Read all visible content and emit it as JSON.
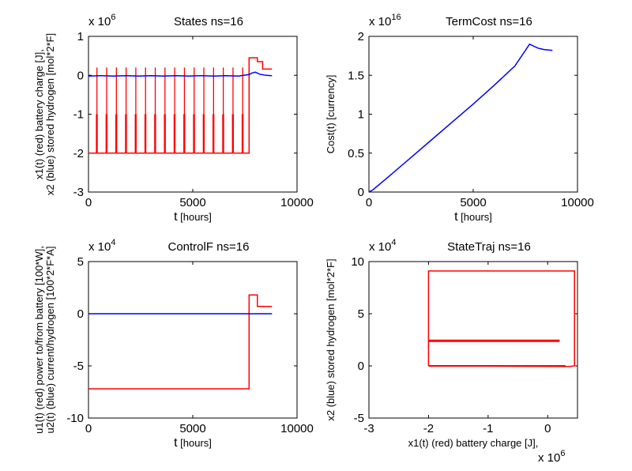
{
  "chart_data": [
    {
      "type": "line",
      "title": "States ns=16",
      "exponent": {
        "base": "x 10",
        "power": "6"
      },
      "xlabel": {
        "main": "t",
        "unit": "[hours]"
      },
      "ylabel": [
        "x1(t) (red) battery charge [J],",
        "x2 (blue) stored hydrogen [mol*2*F]"
      ],
      "xlim": [
        0,
        10000
      ],
      "ylim": [
        -3,
        1
      ],
      "xticks": [
        0,
        5000,
        10000
      ],
      "yticks": [
        -3,
        -2,
        -1,
        0,
        1
      ],
      "ytick_labels": [
        "-3",
        "-2",
        "-1",
        "0",
        "1"
      ],
      "series": [
        {
          "color": "#ff0000",
          "pulses": {
            "count": 16,
            "first": 400,
            "spacing": 466,
            "top": 0.2,
            "mid": -1.0,
            "base": -2.0
          },
          "x": [
            0,
            7700,
            7700,
            7700,
            8100,
            8100,
            8350,
            8350,
            8800
          ],
          "y": [
            -2.0,
            -2.0,
            0.0,
            0.45,
            0.45,
            0.35,
            0.35,
            0.16,
            0.16
          ]
        },
        {
          "color": "#0000ff",
          "x": [
            0,
            600,
            1200,
            1800,
            2400,
            3000,
            3600,
            4200,
            4800,
            5400,
            6000,
            6600,
            7200,
            7700,
            7850,
            8000,
            8200,
            8500,
            8800
          ],
          "y": [
            -0.02,
            -0.01,
            -0.02,
            -0.01,
            -0.02,
            -0.01,
            -0.02,
            -0.01,
            -0.02,
            -0.01,
            -0.02,
            -0.01,
            -0.02,
            0.02,
            0.06,
            0.08,
            0.03,
            0.0,
            -0.01
          ]
        }
      ]
    },
    {
      "type": "line",
      "title": "TermCost ns=16",
      "exponent": {
        "base": "x 10",
        "power": "16"
      },
      "xlabel": {
        "main": "t",
        "unit": "[hours]"
      },
      "ylabel": [
        "Cost(t) [currency]"
      ],
      "xlim": [
        0,
        10000
      ],
      "ylim": [
        0,
        2
      ],
      "xticks": [
        0,
        5000,
        10000
      ],
      "yticks": [
        0,
        0.5,
        1,
        1.5,
        2
      ],
      "ytick_labels": [
        "0",
        "0.5",
        "1",
        "1.5",
        "2"
      ],
      "series": [
        {
          "color": "#0000ff",
          "x": [
            0,
            200,
            1000,
            2000,
            3000,
            4000,
            5000,
            6000,
            7000,
            7700,
            8100,
            8400,
            8800
          ],
          "y": [
            0,
            0.03,
            0.21,
            0.44,
            0.67,
            0.9,
            1.13,
            1.37,
            1.62,
            1.9,
            1.85,
            1.83,
            1.82
          ]
        }
      ]
    },
    {
      "type": "line",
      "title": "ControlF ns=16",
      "exponent": {
        "base": "x 10",
        "power": "4"
      },
      "xlabel": {
        "main": "t",
        "unit": "[hours]"
      },
      "ylabel": [
        "u1(t) (red) power to/from battery [100*W],",
        "u2(t) (blue) current/hydrogen [100*2*F*A]"
      ],
      "xlim": [
        0,
        10000
      ],
      "ylim": [
        -10,
        5
      ],
      "xticks": [
        0,
        5000,
        10000
      ],
      "yticks": [
        -10,
        -5,
        0,
        5
      ],
      "ytick_labels": [
        "-10",
        "-5",
        "0",
        "5"
      ],
      "series": [
        {
          "color": "#ff0000",
          "x": [
            0,
            7700,
            7700,
            7700,
            8100,
            8100,
            8800
          ],
          "y": [
            -7.2,
            -7.2,
            0,
            1.8,
            1.8,
            0.7,
            0.7
          ]
        },
        {
          "color": "#0000ff",
          "x": [
            0,
            8800
          ],
          "y": [
            0,
            0
          ]
        }
      ]
    },
    {
      "type": "line",
      "title": "StateTraj ns=16",
      "exponent": {
        "base": "x 10",
        "power": "4"
      },
      "xexponent": {
        "base": "x 10",
        "power": "6"
      },
      "xlabel": {
        "main": "x1(t) (red) battery charge [J],",
        "unit": ""
      },
      "ylabel": [
        "x2 (blue) stored hydrogen [mol*2*F]"
      ],
      "xlim": [
        -3,
        0.5
      ],
      "ylim": [
        -5,
        10
      ],
      "xticks": [
        -3,
        -2,
        -1,
        0
      ],
      "yticks": [
        -5,
        0,
        5,
        10
      ],
      "ytick_labels": [
        "-5",
        "0",
        "5",
        "10"
      ],
      "series": [
        {
          "color": "#ff0000",
          "x": [
            -2,
            -2,
            0.45,
            0.45,
            0.35,
            -2
          ],
          "y": [
            0,
            9.1,
            9.1,
            0,
            -0.05,
            0
          ]
        },
        {
          "color": "#ff0000",
          "width": 3,
          "x": [
            -2,
            0.2
          ],
          "y": [
            2.4,
            2.4
          ]
        },
        {
          "color": "#ff0000",
          "width": 2,
          "x": [
            -2,
            0.3
          ],
          "y": [
            0,
            0
          ]
        }
      ]
    }
  ]
}
